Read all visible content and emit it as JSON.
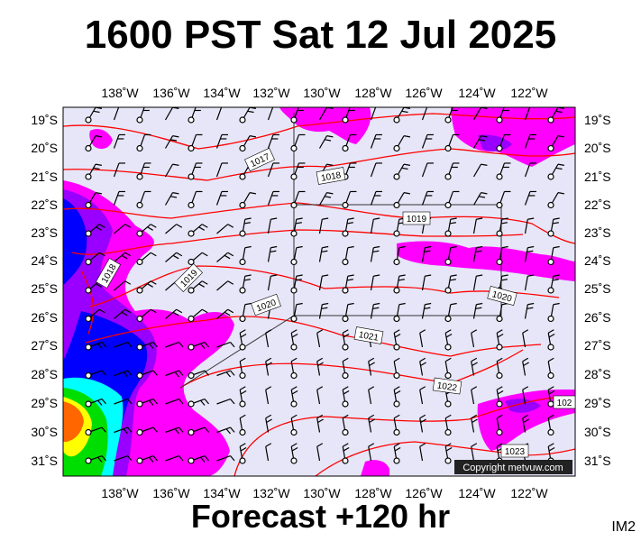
{
  "header": {
    "title": "1600 PST Sat 12 Jul 2025"
  },
  "footer": {
    "forecast": "Forecast +120 hr",
    "tag": "IM2"
  },
  "map": {
    "lon_labels": [
      "138˚W",
      "136˚W",
      "134˚W",
      "132˚W",
      "130˚W",
      "128˚W",
      "126˚W",
      "124˚W",
      "122˚W"
    ],
    "lat_labels": [
      "19˚S",
      "20˚S",
      "21˚S",
      "22˚S",
      "23˚S",
      "24˚S",
      "25˚S",
      "26˚S",
      "27˚S",
      "28˚S",
      "29˚S",
      "30˚S",
      "31˚S"
    ],
    "isobar_labels": [
      "1017",
      "1018",
      "1018",
      "1019",
      "1019",
      "1020",
      "1020",
      "1021",
      "1022",
      "1023",
      "102"
    ],
    "copyright": "Copyright metvuw.com",
    "colors": {
      "background": "#e6e6f8",
      "isobar": "#ff0000",
      "light_rain": "#ff00ff",
      "moderate_rain": "#9900ff",
      "heavy_rain": "#0000ff",
      "very_heavy": "#00ffff",
      "extreme_low": "#00dd00",
      "extreme_mid": "#ffff00",
      "extreme_high": "#ff6600"
    }
  }
}
